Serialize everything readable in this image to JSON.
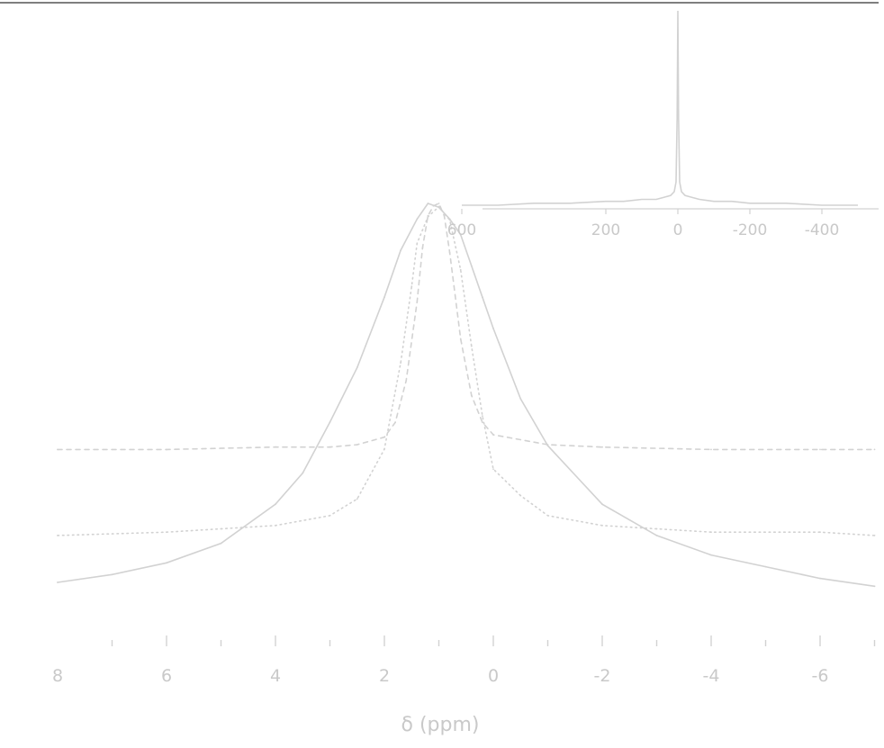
{
  "chart_data": [
    {
      "type": "line",
      "panel": "main",
      "title": "",
      "xlabel": "δ (ppm)",
      "ylabel": "",
      "xlim": [
        8,
        -7
      ],
      "x_reversed": true,
      "ylim": [
        0,
        1.12
      ],
      "grid": false,
      "legend": "none",
      "tick_labels": [
        "8",
        "6",
        "4",
        "2",
        "0",
        "-2",
        "-4",
        "-6"
      ],
      "series": [
        {
          "style": "solid",
          "offset": 0.0,
          "x": [
            8.0,
            7.0,
            6.0,
            5.0,
            4.0,
            3.5,
            3.0,
            2.5,
            2.0,
            1.7,
            1.4,
            1.2,
            1.0,
            0.8,
            0.6,
            0.4,
            0.2,
            0.0,
            -0.5,
            -1.0,
            -2.0,
            -3.0,
            -4.0,
            -5.0,
            -6.0,
            -7.0
          ],
          "y": [
            0.03,
            0.05,
            0.08,
            0.13,
            0.23,
            0.31,
            0.44,
            0.58,
            0.76,
            0.88,
            0.96,
            1.0,
            0.99,
            0.96,
            0.92,
            0.84,
            0.76,
            0.68,
            0.5,
            0.38,
            0.23,
            0.15,
            0.1,
            0.07,
            0.04,
            0.02
          ]
        },
        {
          "style": "dotted",
          "offset": 0.15,
          "x": [
            8.0,
            6.0,
            5.0,
            4.0,
            3.0,
            2.5,
            2.0,
            1.7,
            1.5,
            1.4,
            1.3,
            1.2,
            1.0,
            0.8,
            0.6,
            0.4,
            0.2,
            0.0,
            -0.5,
            -1.0,
            -2.0,
            -3.0,
            -4.0,
            -6.0,
            -7.0
          ],
          "y": [
            0.0,
            0.01,
            0.02,
            0.03,
            0.06,
            0.11,
            0.26,
            0.52,
            0.75,
            0.88,
            0.92,
            0.96,
            0.99,
            0.95,
            0.8,
            0.57,
            0.36,
            0.2,
            0.12,
            0.06,
            0.03,
            0.02,
            0.01,
            0.01,
            0.0
          ]
        },
        {
          "style": "dashed",
          "offset": 0.37,
          "x": [
            8.0,
            6.0,
            4.0,
            3.0,
            2.5,
            2.0,
            1.8,
            1.6,
            1.4,
            1.3,
            1.2,
            1.1,
            1.0,
            0.9,
            0.8,
            0.6,
            0.4,
            0.2,
            0.0,
            -1.0,
            -2.0,
            -4.0,
            -6.0,
            -7.0
          ],
          "y": [
            0.0,
            0.0,
            0.01,
            0.01,
            0.02,
            0.05,
            0.11,
            0.28,
            0.6,
            0.82,
            0.95,
            0.99,
            1.0,
            0.95,
            0.8,
            0.45,
            0.22,
            0.11,
            0.06,
            0.02,
            0.01,
            0.0,
            0.0,
            0.0
          ]
        }
      ]
    },
    {
      "type": "line",
      "panel": "inset",
      "xlim": [
        600,
        -500
      ],
      "x_reversed": true,
      "ylim": [
        0,
        1.0
      ],
      "tick_labels": [
        "600",
        "200",
        "0",
        "-200",
        "-400"
      ],
      "series": [
        {
          "style": "solid",
          "x": [
            600,
            500,
            400,
            300,
            200,
            150,
            100,
            60,
            40,
            20,
            10,
            5,
            2,
            0,
            -2,
            -5,
            -10,
            -20,
            -40,
            -60,
            -100,
            -150,
            -200,
            -300,
            -400,
            -500
          ],
          "y": [
            0.0,
            0.0,
            0.01,
            0.01,
            0.02,
            0.02,
            0.03,
            0.03,
            0.04,
            0.05,
            0.07,
            0.12,
            0.45,
            1.0,
            0.45,
            0.12,
            0.07,
            0.05,
            0.04,
            0.03,
            0.02,
            0.02,
            0.01,
            0.01,
            0.0,
            0.0
          ]
        }
      ]
    }
  ],
  "colors": {
    "line": "#d2d2d2",
    "text": "#c9c9c9",
    "frame": "#555555"
  }
}
